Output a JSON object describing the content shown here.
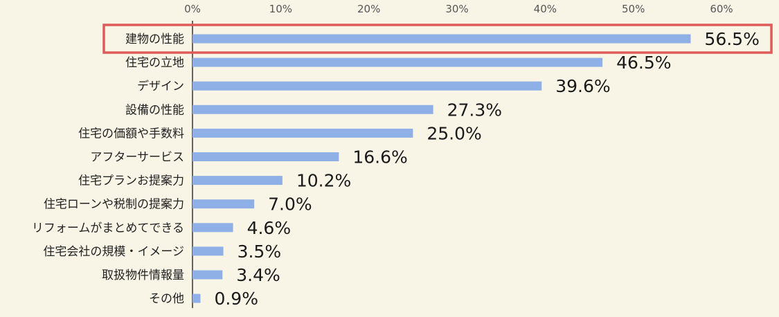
{
  "chart_data": {
    "type": "bar",
    "orientation": "horizontal",
    "categories": [
      "建物の性能",
      "住宅の立地",
      "デザイン",
      "設備の性能",
      "住宅の価額や手数料",
      "アフターサービス",
      "住宅プランお提案力",
      "住宅ローンや税制の提案力",
      "リフォームがまとめてできる",
      "住宅会社の規模・イメージ",
      "取扱物件情報量",
      "その他"
    ],
    "values": [
      56.5,
      46.5,
      39.6,
      27.3,
      25.0,
      16.6,
      10.2,
      7.0,
      4.6,
      3.5,
      3.4,
      0.9
    ],
    "value_labels": [
      "56.5%",
      "46.5%",
      "39.6%",
      "27.3%",
      "25.0%",
      "16.6%",
      "10.2%",
      "7.0%",
      "4.6%",
      "3.5%",
      "3.4%",
      "0.9%"
    ],
    "x_ticks": [
      "0%",
      "10%",
      "20%",
      "30%",
      "40%",
      "50%",
      "60%"
    ],
    "xlim": [
      0,
      60
    ],
    "axis_position": "top",
    "grid": false,
    "highlighted_category": "建物の性能",
    "colors": {
      "bar": "#8fb0e6",
      "highlight_border": "#e05a5a",
      "background": "#f8f5e6",
      "axis": "#333333"
    }
  }
}
